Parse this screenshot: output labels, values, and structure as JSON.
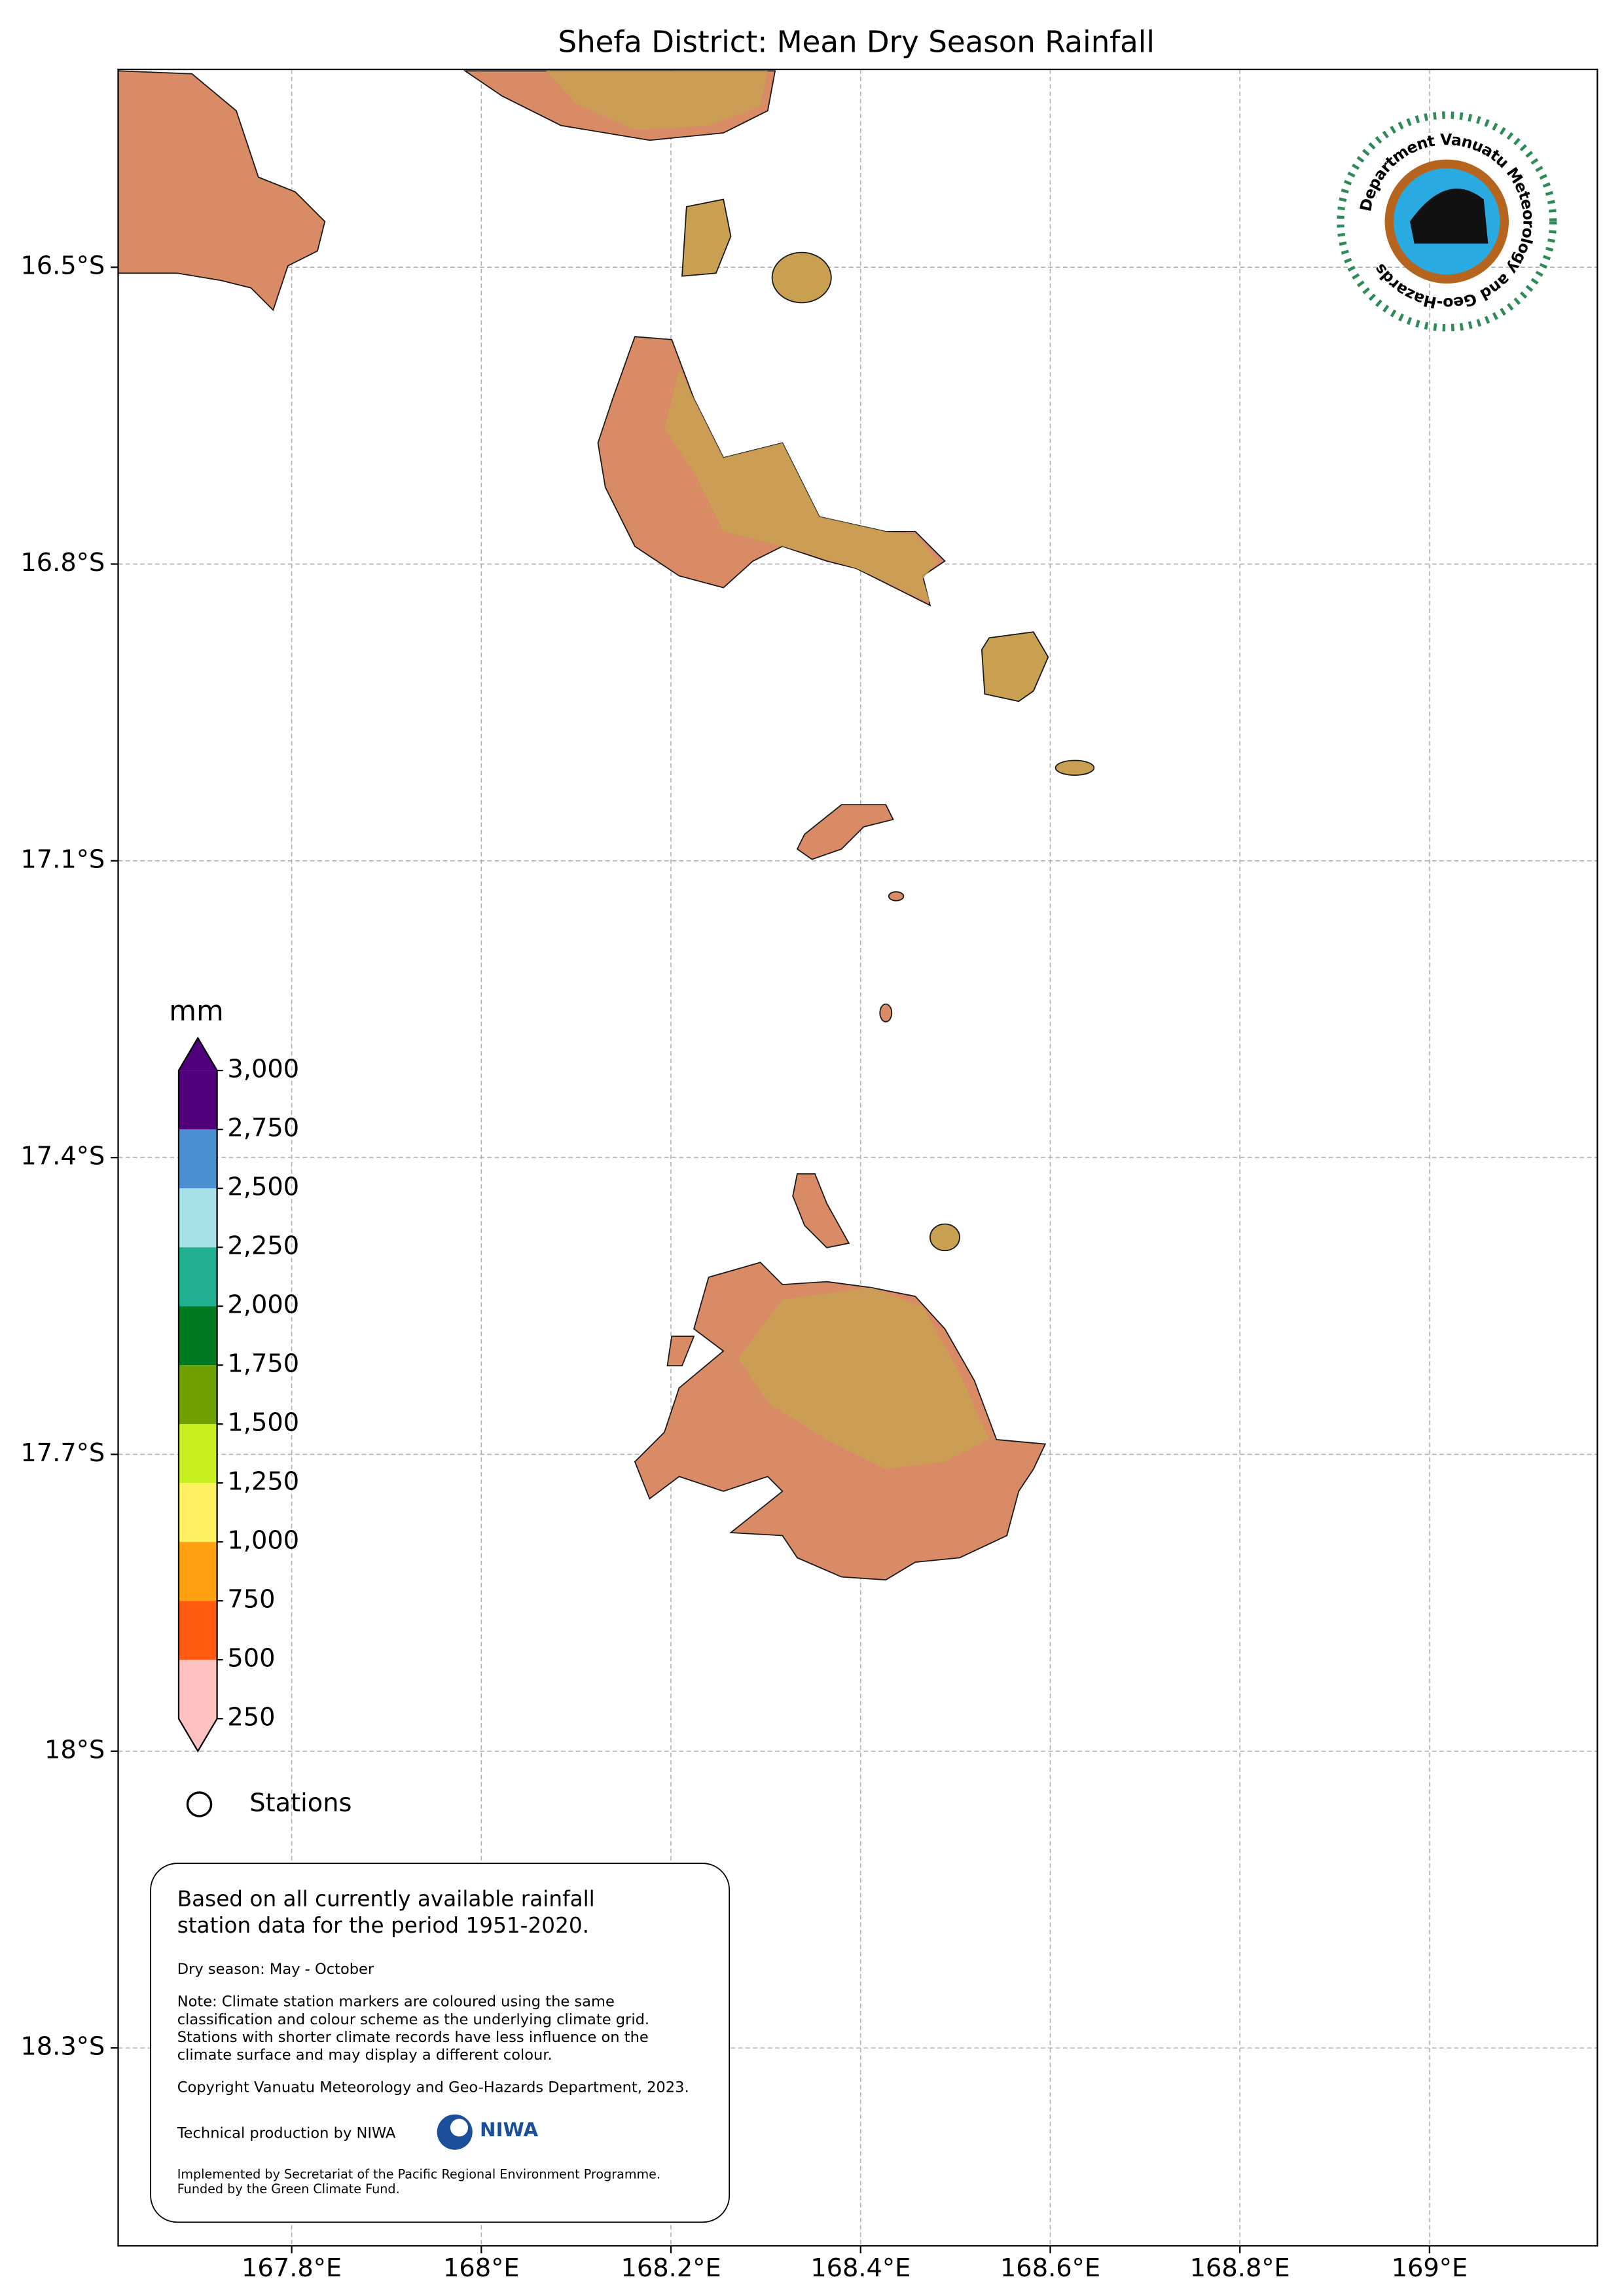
{
  "title": "Shefa District: Mean Dry Season Rainfall",
  "xlim": [
    167.617,
    169.177
  ],
  "ylim": [
    -18.5,
    -16.3
  ],
  "xticks": [
    {
      "value": 167.8,
      "label": "167.8°E"
    },
    {
      "value": 168.0,
      "label": "168°E"
    },
    {
      "value": 168.2,
      "label": "168.2°E"
    },
    {
      "value": 168.4,
      "label": "168.4°E"
    },
    {
      "value": 168.6,
      "label": "168.6°E"
    },
    {
      "value": 168.8,
      "label": "168.8°E"
    },
    {
      "value": 169.0,
      "label": "169°E"
    }
  ],
  "yticks": [
    {
      "value": -16.5,
      "label": "16.5°S"
    },
    {
      "value": -16.8,
      "label": "16.8°S"
    },
    {
      "value": -17.1,
      "label": "17.1°S"
    },
    {
      "value": -17.4,
      "label": "17.4°S"
    },
    {
      "value": -17.7,
      "label": "17.7°S"
    },
    {
      "value": -18.0,
      "label": "18°S"
    },
    {
      "value": -18.3,
      "label": "18.3°S"
    }
  ],
  "grid": true,
  "colorbar": {
    "unit": "mm",
    "ticks": [
      250,
      500,
      750,
      {
        "value": 1000,
        "label": "1,000"
      },
      {
        "value": 1250,
        "label": "1,250"
      },
      {
        "value": 1500,
        "label": "1,500"
      },
      {
        "value": 1750,
        "label": "1,750"
      },
      {
        "value": 2000,
        "label": "2,000"
      },
      {
        "value": 2250,
        "label": "2,250"
      },
      {
        "value": 2500,
        "label": "2,500"
      },
      {
        "value": 2750,
        "label": "2,750"
      },
      {
        "value": 3000,
        "label": "3,000"
      }
    ],
    "colors": [
      "#ffc0c0",
      "#ff5a10",
      "#ffa010",
      "#fff060",
      "#c8f020",
      "#70a000",
      "#007a20",
      "#20b090",
      "#a8e0e8",
      "#4a90d0",
      "#50007a"
    ],
    "extend": "both"
  },
  "legend": {
    "label": "Stations"
  },
  "note": {
    "intro": [
      "Based on all currently available rainfall",
      "station data for the period 1951-2020."
    ],
    "season": "Dry season: May - October",
    "details": [
      "Note: Climate station markers are coloured using the same",
      "classification and colour scheme as the underlying climate grid.",
      "Stations with shorter climate records have less influence on the",
      "climate surface and may display a different colour."
    ],
    "copyright": "Copyright Vanuatu Meteorology and Geo-Hazards Department, 2023.",
    "production": "Technical production by NIWA",
    "niwa": "NIWA",
    "funding": [
      "Implemented by Secretariat of the Pacific Regional Environment Programme.",
      "Funded by the Green Climate Fund."
    ]
  },
  "logo": {
    "text": "Department Vanuatu Meteorology and Geo-Hazards"
  }
}
